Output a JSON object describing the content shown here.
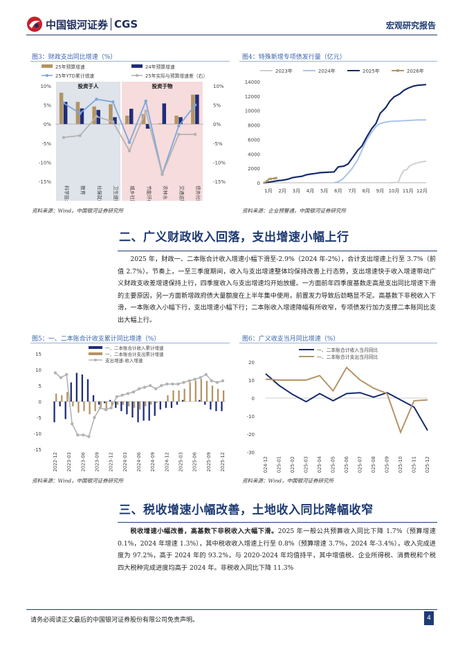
{
  "header": {
    "brand_cn": "中国银河证券",
    "brand_en": "CGS",
    "report_type": "宏观研究报告"
  },
  "fig3": {
    "title": "图3：财政支出同比增速（%）",
    "source": "资料来源：Wind，中国银河证券研究所",
    "chart_data": {
      "type": "bar",
      "categories": [
        "科学技术",
        "教育",
        "社保就业支出",
        "卫生健康",
        "城乡社区",
        "节能环保",
        "农林水",
        "交通运输",
        "债务付息"
      ],
      "groups": [
        {
          "label": "投资于人",
          "range": [
            0,
            3
          ]
        },
        {
          "label": "投资于物",
          "range": [
            4,
            8
          ]
        }
      ],
      "series": [
        {
          "name": "25年预算增速",
          "kind": "bar",
          "color": "#b39465",
          "values": [
            8.2,
            5.8,
            4.6,
            5.2,
            2.2,
            2.6,
            0.2,
            2.2,
            7.7
          ]
        },
        {
          "name": "24年预算增速",
          "kind": "bar",
          "color": "#1f2d7a",
          "values": [
            5.8,
            4.1,
            3.7,
            1.8,
            4.0,
            -1.2,
            5.4,
            1.8,
            7.7
          ]
        },
        {
          "name": "25年YTD累计增速",
          "kind": "line",
          "color": "#7aa6de",
          "values": [
            5.5,
            2.8,
            6.5,
            5.8,
            -4.8,
            6.0,
            -13.0,
            -0.5,
            5.0
          ]
        },
        {
          "name": "25年实际与预算增速差（右）",
          "kind": "line",
          "color": "#b3b3b3",
          "values": [
            -3.5,
            -3.0,
            2.0,
            0.6,
            -7.0,
            3.4,
            -13.2,
            -2.7,
            -2.7
          ]
        }
      ],
      "ylim": [
        -15,
        10
      ],
      "yticks": [
        "10%",
        "5%",
        "0%",
        "-5%",
        "-10%",
        "-15%"
      ],
      "yticks_right": [
        "10%",
        "5%",
        "0%",
        "-5%",
        "-10%",
        "-15%"
      ]
    }
  },
  "fig4": {
    "title": "图4：特殊新增专项债发行量（亿元）",
    "source": "资料来源：企业预警通，中国银河证券研究所",
    "chart_data": {
      "type": "line",
      "x_ticks": [
        "1月",
        "2月",
        "3月",
        "4月",
        "5月",
        "6月",
        "7月",
        "8月",
        "9月",
        "10月",
        "11月",
        "12月"
      ],
      "ylim": [
        0,
        14000
      ],
      "yticks": [
        "14000",
        "12000",
        "10000",
        "8000",
        "6000",
        "4000",
        "2000",
        "0"
      ],
      "series": [
        {
          "name": "2023年",
          "color": "#cfcfcf",
          "points": [
            [
              10,
              0
            ],
            [
              10.6,
              60
            ],
            [
              10.8,
              1100
            ],
            [
              11,
              1700
            ],
            [
              11.2,
              1800
            ],
            [
              11.4,
              2300
            ],
            [
              11.7,
              2600
            ],
            [
              12,
              2800
            ],
            [
              12.6,
              3000
            ]
          ]
        },
        {
          "name": "2024年",
          "color": "#a9c4e8",
          "points": [
            [
              6,
              0
            ],
            [
              6.3,
              150
            ],
            [
              6.6,
              500
            ],
            [
              7,
              1300
            ],
            [
              7.3,
              2000
            ],
            [
              7.7,
              3200
            ],
            [
              8,
              4500
            ],
            [
              8.3,
              5800
            ],
            [
              8.7,
              7000
            ],
            [
              9,
              7800
            ],
            [
              9.3,
              8200
            ],
            [
              9.7,
              8400
            ],
            [
              10,
              8500
            ],
            [
              11,
              8600
            ],
            [
              12,
              8700
            ],
            [
              12.6,
              8700
            ]
          ]
        },
        {
          "name": "2025年",
          "color": "#152a6b",
          "points": [
            [
              1,
              0
            ],
            [
              1.3,
              80
            ],
            [
              1.7,
              200
            ],
            [
              2,
              300
            ],
            [
              2.3,
              350
            ],
            [
              2.7,
              500
            ],
            [
              3,
              700
            ],
            [
              3.3,
              800
            ],
            [
              3.7,
              900
            ],
            [
              4,
              1100
            ],
            [
              4.3,
              1200
            ],
            [
              4.7,
              1300
            ],
            [
              5,
              1400
            ],
            [
              5.5,
              1450
            ],
            [
              6,
              1500
            ],
            [
              6.3,
              2200
            ],
            [
              6.7,
              2300
            ],
            [
              7,
              2600
            ],
            [
              7.3,
              3400
            ],
            [
              7.7,
              4500
            ],
            [
              8,
              5100
            ],
            [
              8.3,
              6200
            ],
            [
              8.7,
              7500
            ],
            [
              9,
              8200
            ],
            [
              9.3,
              9600
            ],
            [
              9.7,
              10400
            ],
            [
              10,
              11300
            ],
            [
              10.3,
              11900
            ],
            [
              10.7,
              12300
            ],
            [
              11,
              12800
            ],
            [
              11.3,
              13100
            ],
            [
              11.7,
              13400
            ],
            [
              12,
              13500
            ],
            [
              12.6,
              13600
            ]
          ]
        },
        {
          "name": "2026年",
          "color": "#b39465",
          "points": [
            [
              1,
              0
            ],
            [
              1.2,
              250
            ],
            [
              1.35,
              500
            ],
            [
              1.5,
              550
            ],
            [
              1.7,
              600
            ],
            [
              1.85,
              650
            ]
          ]
        }
      ]
    }
  },
  "section2": {
    "title": "二、广义财政收入回落，支出增速小幅上行",
    "paragraph": "2025 年，财政一、二本账合计收入增速小幅下滑至-2.9%（2024 年-2%），合计支出增速上行至 3.7%（前值 2.7%）。节奏上，一至三季度期间，收入与支出增速整体均保持改善上行态势，支出增速快于收入增速带动广义财政支收差增速保持上行，四季度收入与支出增速均开始放缓。一方面前年四季度基数走高是支出同比增速下滑的主要原因，另一方面新增政府债大量额度在上半年集中使用，前置发力导致后劲略显不足。高基数下非税收入下滑，一本账收入小幅下行，支出增速小幅下行；二本账收入增速降幅有所收窄，专项债发行加力支撑二本账同比支出大幅上行。"
  },
  "fig5": {
    "title": "图5：一、二本账合计收支累计同比增速（%）",
    "source": "资料来源：Wind，中国银河证券研究所",
    "chart_data": {
      "type": "bar",
      "x_ticks": [
        "2022-12",
        "2023-03",
        "2023-06",
        "2023-09",
        "2023-12",
        "2024-03",
        "2024-06",
        "2024-09",
        "2024-12",
        "2025-03",
        "2025-06",
        "2025-09",
        "2025-12"
      ],
      "ylim": [
        -15,
        15
      ],
      "yticks": [
        "15",
        "10",
        "5",
        "0",
        "-5",
        "-10",
        "-15"
      ],
      "series": [
        {
          "name": "一、二本账合计收入累计增速",
          "kind": "bar",
          "color": "#1f2d7a",
          "values": [
            -6.5,
            -1.5,
            -5.5,
            6.0,
            9.0,
            8.5,
            7.0,
            2.0,
            -1.0,
            -0.5,
            0.5,
            -2.0,
            -3.0,
            -4.0,
            -5.0,
            -6.5,
            -6.0,
            -6.0,
            -4.5,
            -2.5,
            -2.0,
            -2.0,
            -1.0,
            0.5,
            0.0,
            0.0,
            0.5,
            -1.0,
            -2.5,
            -3.0,
            -3.0
          ]
        },
        {
          "name": "一、二本账合计支出累计增速",
          "kind": "bar",
          "color": "#b39465",
          "values": [
            2.5,
            2.0,
            3.0,
            -1.5,
            -3.5,
            -3.0,
            -4.0,
            -3.0,
            -2.0,
            -3.0,
            -1.5,
            -1.0,
            -1.0,
            -1.5,
            -2.0,
            -2.5,
            -1.5,
            -1.0,
            -0.5,
            0.0,
            2.0,
            3.5,
            3.5,
            4.0,
            6.0,
            6.5,
            7.0,
            6.5,
            5.0,
            4.0,
            3.5
          ]
        },
        {
          "name": "支出增速-收入增速",
          "kind": "line",
          "color": "#b3b3b3",
          "values": [
            9.0,
            7.5,
            8.5,
            -7.0,
            -10.5,
            -10.5,
            -11.0,
            -5.0,
            -2.0,
            -2.5,
            -2.0,
            1.5,
            2.0,
            2.5,
            3.0,
            4.0,
            4.5,
            5.0,
            4.0,
            5.0,
            5.5,
            5.5,
            5.5,
            6.0,
            6.5,
            7.0,
            7.5,
            8.5,
            6.5,
            6.0,
            6.5
          ]
        }
      ]
    }
  },
  "fig6": {
    "title": "图6：广义收支当月同比增速（%）",
    "source": "资料来源：Wind，中国银河证券研究所",
    "chart_data": {
      "type": "line",
      "x_ticks": [
        "2024-12",
        "2025-01",
        "2025-02",
        "2025-03",
        "2025-04",
        "2025-05",
        "2025-06",
        "2025-07",
        "2025-08",
        "2025-09",
        "2025-10",
        "2025-11",
        "2025-12"
      ],
      "ylim": [
        -30,
        20
      ],
      "yticks": [
        "20",
        "10",
        "0",
        "-10",
        "-20",
        "-30"
      ],
      "series": [
        {
          "name": "一、二本账合计收入当月同比",
          "color": "#152a6b",
          "values": [
            13.5,
            7.0,
            2.0,
            -2.0,
            2.5,
            -1.5,
            2.5,
            3.0,
            0.5,
            3.0,
            -1.0,
            -5.0,
            -18.0
          ]
        },
        {
          "name": "一、二本账合计支出当月同比",
          "color": "#b39465",
          "values": [
            10.5,
            10.0,
            10.0,
            10.0,
            12.5,
            4.0,
            17.0,
            10.0,
            5.5,
            2.5,
            -19.0,
            -1.5,
            -1.0
          ]
        }
      ]
    }
  },
  "section3": {
    "title": "三、税收增速小幅改善，土地收入同比降幅收窄",
    "paragraph_lead": "税收增速小幅改善，高基数下非税收入大幅下滑。",
    "paragraph": "2025 年一般公共预算收入同比下降 1.7%（预算增速 0.1%，2024 年增速 1.3%），其中税收收入增速上行至 0.8%（预算增速 3.7%，2024 年-3.4%），收入完成进度为 97.2%，高于 2024 年的 93.2%，与 2020-2024 年均值持平，其中增值税、企业所得税、消费税和个税四大税种完成进度均高于 2024 年。非税收入同比下降 11.3%"
  },
  "footer": {
    "disclaimer": "请务必阅读正文最后的中国银河证券股份有限公司免责声明。",
    "page": "4"
  }
}
